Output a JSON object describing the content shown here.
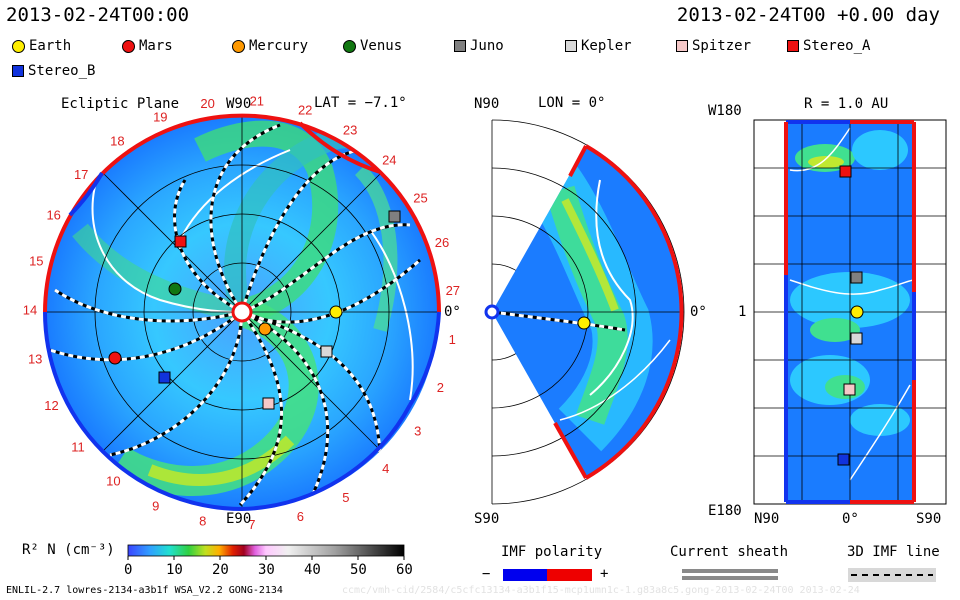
{
  "header": {
    "date_left": "2013-02-24T00:00",
    "date_right": "2013-02-24T00 +0.00 day"
  },
  "legend": {
    "items": [
      {
        "label": "Earth",
        "shape": "circle",
        "color": "#ffee00"
      },
      {
        "label": "Mars",
        "shape": "circle",
        "color": "#ee1111"
      },
      {
        "label": "Mercury",
        "shape": "circle",
        "color": "#ff9900"
      },
      {
        "label": "Venus",
        "shape": "circle",
        "color": "#117711"
      },
      {
        "label": "Juno",
        "shape": "square",
        "color": "#808080"
      },
      {
        "label": "Kepler",
        "shape": "square",
        "color": "#d8d8d8"
      },
      {
        "label": "Spitzer",
        "shape": "square",
        "color": "#f5c8c8"
      },
      {
        "label": "Stereo_A",
        "shape": "square",
        "color": "#ee1111"
      },
      {
        "label": "Stereo_B",
        "shape": "square",
        "color": "#1133dd"
      }
    ]
  },
  "panels": {
    "ecliptic": {
      "title": "Ecliptic Plane",
      "top_label": "W90",
      "lat_label": "LAT = −7.1°",
      "right_label": "0°",
      "bottom_label": "E90",
      "carrington_ticks": [
        "1",
        "2",
        "3",
        "4",
        "5",
        "6",
        "7",
        "8",
        "9",
        "10",
        "11",
        "12",
        "13",
        "14",
        "15",
        "16",
        "17",
        "18",
        "19",
        "20",
        "21",
        "22",
        "23",
        "24",
        "25",
        "26",
        "27"
      ]
    },
    "meridional": {
      "top_label": "N90",
      "lon_label": "LON = 0°",
      "right_label": "0°",
      "bottom_label": "S90"
    },
    "rectangle": {
      "r_label": "R = 1.0 AU",
      "top_left": "W180",
      "middle_left": "1",
      "bottom_left": "E180",
      "x_left": "N90",
      "x_mid": "0°",
      "x_right": "S90"
    }
  },
  "colorbar": {
    "label": "R² N (cm⁻³)",
    "ticks": [
      "0",
      "10",
      "20",
      "30",
      "40",
      "50",
      "60"
    ]
  },
  "imf": {
    "label": "IMF polarity",
    "minus": "−",
    "plus": "+",
    "minus_color": "#0000ee",
    "plus_color": "#ee0000"
  },
  "current_sheath": {
    "label": "Current sheath"
  },
  "imf_line": {
    "label": "3D IMF line"
  },
  "footer": {
    "left": "ENLIL-2.7 lowres-2134-a3b1f WSA_V2.2 GONG-2134",
    "right": "ccmc/vmh-cid/2584/c5cfc13134-a3b1f15-mcp1umn1c-1.g83a8c5.gong-2013-02-24T00    2013-02-24"
  }
}
